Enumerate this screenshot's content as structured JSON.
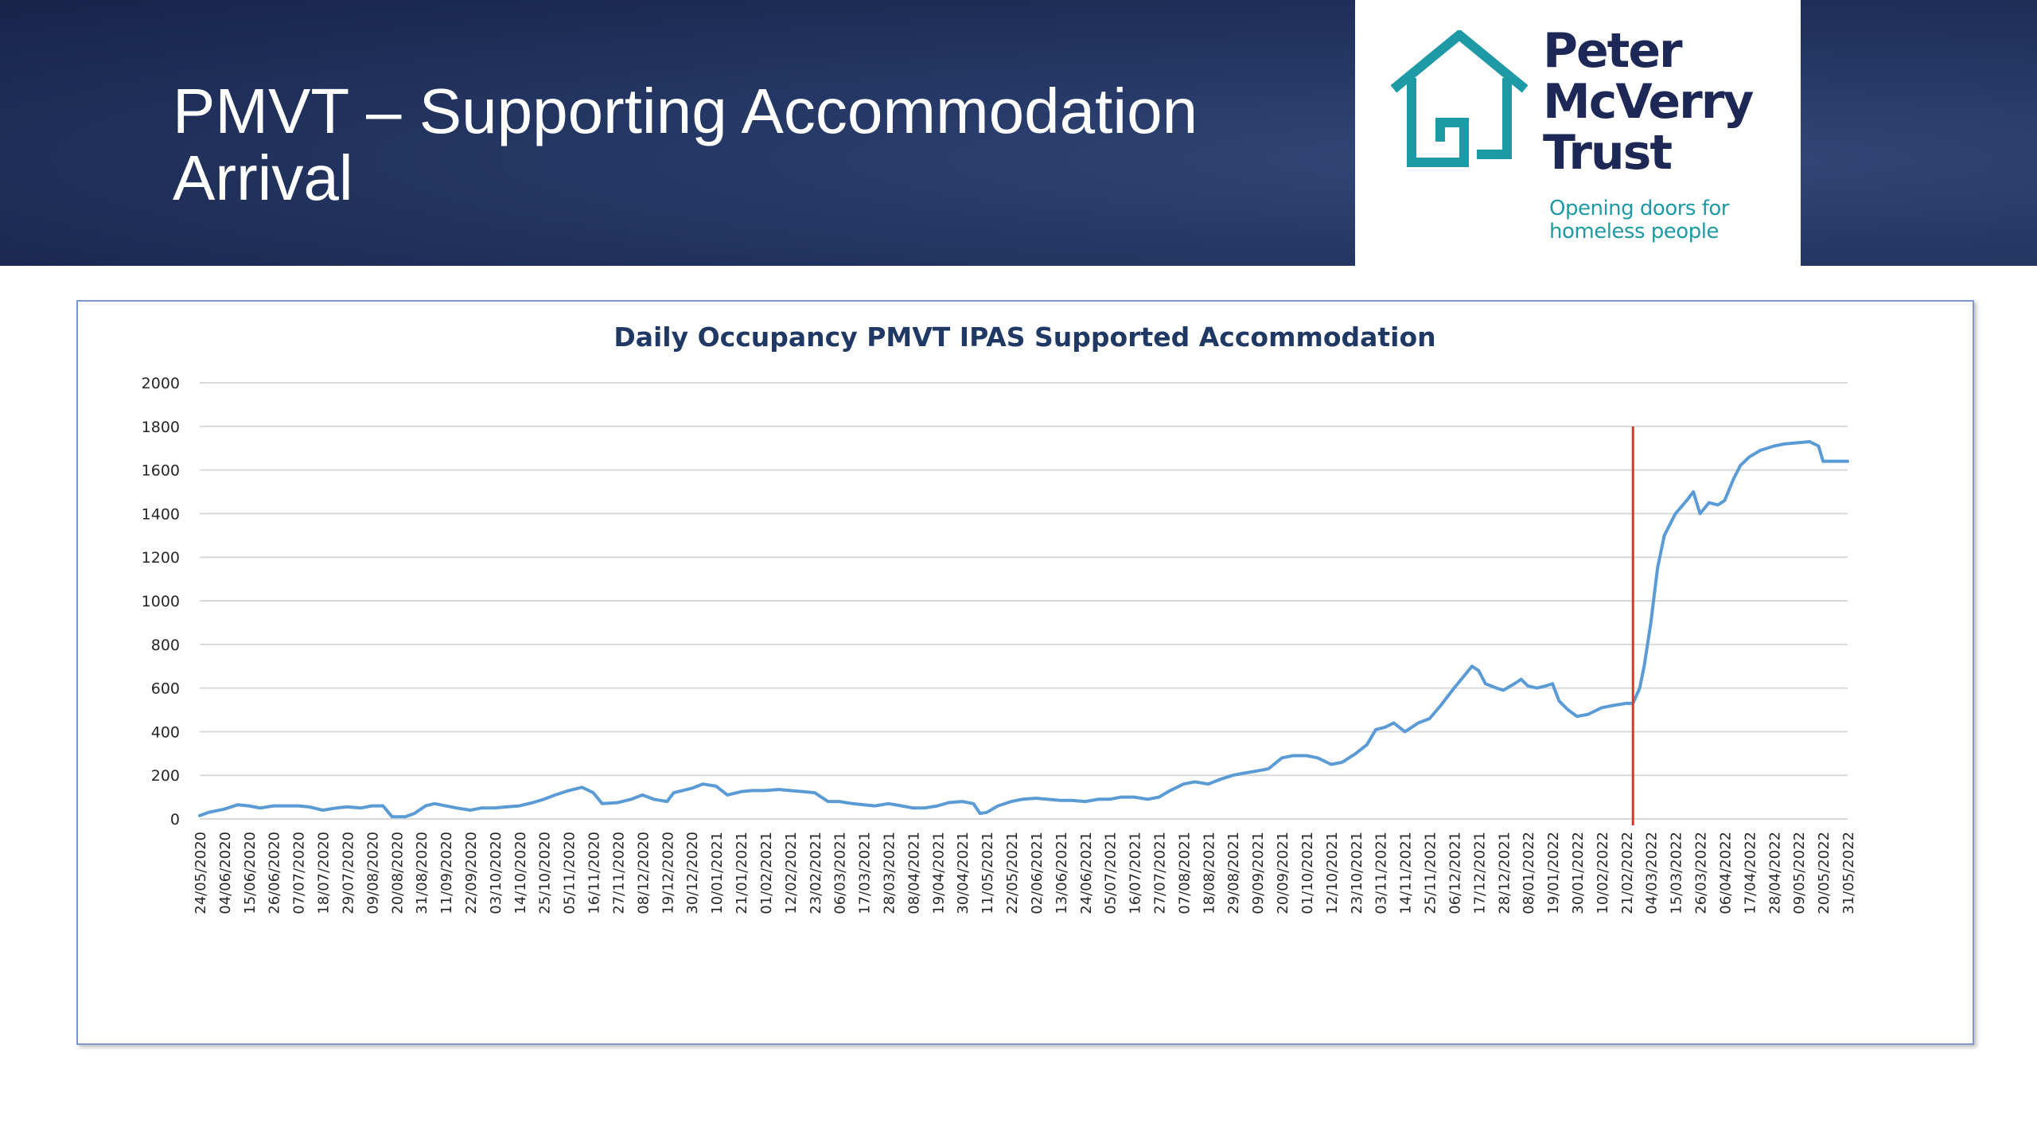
{
  "slide": {
    "title_line1": "PMVT – Supporting Accommodation",
    "title_line2": "Arrival"
  },
  "logo": {
    "name_line1": "Peter",
    "name_line2": "McVerry",
    "name_line3": "Trust",
    "tagline_line1": "Opening doors for",
    "tagline_line2": "homeless people",
    "icon": "house-icon",
    "colors": {
      "name": "#1d2857",
      "icon": "#1d9aa5"
    }
  },
  "colors": {
    "header_bg": "#1f2f5c",
    "series_line": "#5b9bd5",
    "marker_line": "#e8302a",
    "gridline": "#d9d9d9",
    "chart_title": "#1f3864"
  },
  "chart_data": {
    "type": "line",
    "title": "Daily Occupancy PMVT IPAS Supported Accommodation",
    "xlabel": "",
    "ylabel": "",
    "ylim": [
      0,
      2000
    ],
    "yticks": [
      0,
      200,
      400,
      600,
      800,
      1000,
      1200,
      1400,
      1600,
      1800,
      2000
    ],
    "grid": true,
    "legend": "none",
    "x_range": [
      "2020-05-24",
      "2022-05-31"
    ],
    "x_tick_labels": [
      "24/05/2020",
      "04/06/2020",
      "15/06/2020",
      "26/06/2020",
      "07/07/2020",
      "18/07/2020",
      "29/07/2020",
      "09/08/2020",
      "20/08/2020",
      "31/08/2020",
      "11/09/2020",
      "22/09/2020",
      "03/10/2020",
      "14/10/2020",
      "25/10/2020",
      "05/11/2020",
      "16/11/2020",
      "27/11/2020",
      "08/12/2020",
      "19/12/2020",
      "30/12/2020",
      "10/01/2021",
      "21/01/2021",
      "01/02/2021",
      "12/02/2021",
      "23/02/2021",
      "06/03/2021",
      "17/03/2021",
      "28/03/2021",
      "08/04/2021",
      "19/04/2021",
      "30/04/2021",
      "11/05/2021",
      "22/05/2021",
      "02/06/2021",
      "13/06/2021",
      "24/06/2021",
      "05/07/2021",
      "16/07/2021",
      "27/07/2021",
      "07/08/2021",
      "18/08/2021",
      "29/08/2021",
      "09/09/2021",
      "20/09/2021",
      "01/10/2021",
      "12/10/2021",
      "23/10/2021",
      "03/11/2021",
      "14/11/2021",
      "25/11/2021",
      "06/12/2021",
      "17/12/2021",
      "28/12/2021",
      "08/01/2022",
      "19/01/2022",
      "30/01/2022",
      "10/02/2022",
      "21/02/2022",
      "04/03/2022",
      "15/03/2022",
      "26/03/2022",
      "06/04/2022",
      "17/04/2022",
      "28/04/2022",
      "09/05/2022",
      "20/05/2022",
      "31/05/2022"
    ],
    "series": [
      {
        "name": "",
        "points": [
          [
            "2020-05-24",
            15
          ],
          [
            "2020-05-28",
            30
          ],
          [
            "2020-06-04",
            45
          ],
          [
            "2020-06-10",
            65
          ],
          [
            "2020-06-15",
            60
          ],
          [
            "2020-06-20",
            50
          ],
          [
            "2020-06-26",
            60
          ],
          [
            "2020-07-02",
            60
          ],
          [
            "2020-07-07",
            60
          ],
          [
            "2020-07-12",
            55
          ],
          [
            "2020-07-18",
            40
          ],
          [
            "2020-07-24",
            50
          ],
          [
            "2020-07-29",
            55
          ],
          [
            "2020-08-04",
            50
          ],
          [
            "2020-08-09",
            60
          ],
          [
            "2020-08-14",
            60
          ],
          [
            "2020-08-18",
            10
          ],
          [
            "2020-08-24",
            10
          ],
          [
            "2020-08-28",
            25
          ],
          [
            "2020-09-02",
            60
          ],
          [
            "2020-09-06",
            70
          ],
          [
            "2020-09-11",
            60
          ],
          [
            "2020-09-16",
            50
          ],
          [
            "2020-09-22",
            40
          ],
          [
            "2020-09-27",
            50
          ],
          [
            "2020-10-03",
            50
          ],
          [
            "2020-10-08",
            55
          ],
          [
            "2020-10-14",
            60
          ],
          [
            "2020-10-20",
            75
          ],
          [
            "2020-10-25",
            90
          ],
          [
            "2020-10-30",
            110
          ],
          [
            "2020-11-05",
            130
          ],
          [
            "2020-11-11",
            145
          ],
          [
            "2020-11-16",
            120
          ],
          [
            "2020-11-20",
            70
          ],
          [
            "2020-11-27",
            75
          ],
          [
            "2020-12-03",
            90
          ],
          [
            "2020-12-08",
            110
          ],
          [
            "2020-12-13",
            90
          ],
          [
            "2020-12-19",
            80
          ],
          [
            "2020-12-22",
            120
          ],
          [
            "2020-12-30",
            140
          ],
          [
            "2021-01-04",
            160
          ],
          [
            "2021-01-10",
            150
          ],
          [
            "2021-01-15",
            110
          ],
          [
            "2021-01-21",
            125
          ],
          [
            "2021-01-26",
            130
          ],
          [
            "2021-02-01",
            130
          ],
          [
            "2021-02-07",
            135
          ],
          [
            "2021-02-12",
            130
          ],
          [
            "2021-02-18",
            125
          ],
          [
            "2021-02-23",
            120
          ],
          [
            "2021-03-01",
            80
          ],
          [
            "2021-03-06",
            80
          ],
          [
            "2021-03-12",
            70
          ],
          [
            "2021-03-17",
            65
          ],
          [
            "2021-03-22",
            60
          ],
          [
            "2021-03-28",
            70
          ],
          [
            "2021-04-03",
            60
          ],
          [
            "2021-04-08",
            50
          ],
          [
            "2021-04-13",
            50
          ],
          [
            "2021-04-19",
            60
          ],
          [
            "2021-04-24",
            75
          ],
          [
            "2021-04-30",
            80
          ],
          [
            "2021-05-05",
            70
          ],
          [
            "2021-05-08",
            25
          ],
          [
            "2021-05-11",
            30
          ],
          [
            "2021-05-16",
            60
          ],
          [
            "2021-05-22",
            80
          ],
          [
            "2021-05-27",
            90
          ],
          [
            "2021-06-02",
            95
          ],
          [
            "2021-06-07",
            90
          ],
          [
            "2021-06-13",
            85
          ],
          [
            "2021-06-18",
            85
          ],
          [
            "2021-06-24",
            80
          ],
          [
            "2021-06-30",
            90
          ],
          [
            "2021-07-05",
            90
          ],
          [
            "2021-07-10",
            100
          ],
          [
            "2021-07-16",
            100
          ],
          [
            "2021-07-22",
            90
          ],
          [
            "2021-07-27",
            100
          ],
          [
            "2021-08-01",
            130
          ],
          [
            "2021-08-07",
            160
          ],
          [
            "2021-08-12",
            170
          ],
          [
            "2021-08-18",
            160
          ],
          [
            "2021-08-23",
            180
          ],
          [
            "2021-08-29",
            200
          ],
          [
            "2021-09-03",
            210
          ],
          [
            "2021-09-09",
            220
          ],
          [
            "2021-09-14",
            230
          ],
          [
            "2021-09-20",
            280
          ],
          [
            "2021-09-25",
            290
          ],
          [
            "2021-10-01",
            290
          ],
          [
            "2021-10-06",
            280
          ],
          [
            "2021-10-12",
            250
          ],
          [
            "2021-10-17",
            260
          ],
          [
            "2021-10-23",
            300
          ],
          [
            "2021-10-28",
            340
          ],
          [
            "2021-11-01",
            410
          ],
          [
            "2021-11-05",
            420
          ],
          [
            "2021-11-09",
            440
          ],
          [
            "2021-11-14",
            400
          ],
          [
            "2021-11-20",
            440
          ],
          [
            "2021-11-25",
            460
          ],
          [
            "2021-11-30",
            520
          ],
          [
            "2021-12-06",
            600
          ],
          [
            "2021-12-10",
            650
          ],
          [
            "2021-12-14",
            700
          ],
          [
            "2021-12-17",
            680
          ],
          [
            "2021-12-20",
            620
          ],
          [
            "2021-12-25",
            600
          ],
          [
            "2021-12-28",
            590
          ],
          [
            "2022-01-02",
            620
          ],
          [
            "2022-01-05",
            640
          ],
          [
            "2022-01-08",
            610
          ],
          [
            "2022-01-12",
            600
          ],
          [
            "2022-01-16",
            610
          ],
          [
            "2022-01-19",
            620
          ],
          [
            "2022-01-22",
            540
          ],
          [
            "2022-01-26",
            500
          ],
          [
            "2022-01-30",
            470
          ],
          [
            "2022-02-04",
            480
          ],
          [
            "2022-02-10",
            510
          ],
          [
            "2022-02-15",
            520
          ],
          [
            "2022-02-21",
            530
          ],
          [
            "2022-02-24",
            530
          ],
          [
            "2022-02-27",
            600
          ],
          [
            "2022-03-01",
            700
          ],
          [
            "2022-03-04",
            900
          ],
          [
            "2022-03-07",
            1150
          ],
          [
            "2022-03-10",
            1300
          ],
          [
            "2022-03-15",
            1400
          ],
          [
            "2022-03-20",
            1460
          ],
          [
            "2022-03-23",
            1500
          ],
          [
            "2022-03-26",
            1400
          ],
          [
            "2022-03-30",
            1450
          ],
          [
            "2022-04-03",
            1440
          ],
          [
            "2022-04-06",
            1460
          ],
          [
            "2022-04-10",
            1560
          ],
          [
            "2022-04-13",
            1620
          ],
          [
            "2022-04-17",
            1660
          ],
          [
            "2022-04-22",
            1690
          ],
          [
            "2022-04-28",
            1710
          ],
          [
            "2022-05-03",
            1720
          ],
          [
            "2022-05-09",
            1725
          ],
          [
            "2022-05-14",
            1730
          ],
          [
            "2022-05-18",
            1710
          ],
          [
            "2022-05-20",
            1640
          ],
          [
            "2022-05-25",
            1640
          ],
          [
            "2022-05-31",
            1640
          ]
        ]
      }
    ],
    "marker": {
      "type": "vertical-line",
      "x": "2022-02-24",
      "y_range": [
        0,
        1800
      ]
    }
  }
}
